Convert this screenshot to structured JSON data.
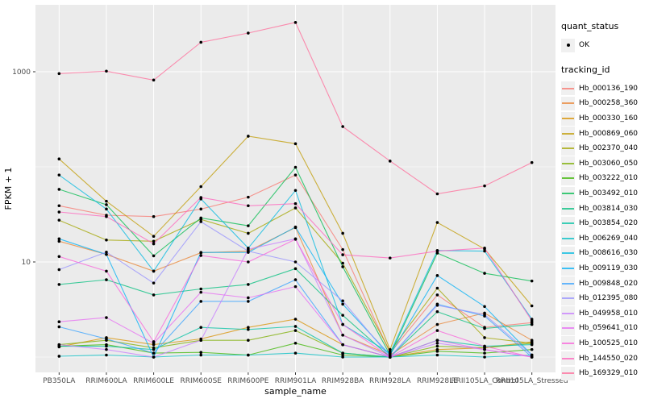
{
  "legend": {
    "quant_status_title": "quant_status",
    "ok_label": "OK",
    "tracking_title": "tracking_id"
  },
  "chart_data": {
    "type": "line",
    "title": "",
    "xlabel": "sample_name",
    "ylabel": "FPKM + 1",
    "y_scale": "log10",
    "ylim": [
      0.68,
      4800
    ],
    "grid": true,
    "legend_position": "right",
    "panel_bg": "#EBEBEB",
    "grid_color": "#FFFFFF",
    "point_color": "#000000",
    "tick_label_color": "#4D4D4D",
    "y_major_ticks": {
      "values": [
        1000,
        10
      ],
      "labels": [
        "1000",
        "10"
      ]
    },
    "y_minor_ticks": {
      "values": [
        100,
        1
      ]
    },
    "categories": [
      "PB350LA",
      "RRIM600LA",
      "RRIM600LE",
      "RRIM600SE",
      "RRIM600PE",
      "RRIM901LA",
      "RRIM928BA",
      "RRIM928LA",
      "RRIM928LE",
      "RRII105LA_Control",
      "RRII105LA_Stressed"
    ],
    "series": [
      {
        "name": "Hb_000136_190",
        "color": "#F8766D",
        "values": [
          39,
          31,
          30,
          36,
          48,
          82,
          13.5,
          1.1,
          4.5,
          2.05,
          2.3
        ]
      },
      {
        "name": "Hb_000258_360",
        "color": "#EA8331",
        "values": [
          16.5,
          12,
          8,
          12.5,
          13,
          23,
          1.7,
          1.05,
          2.2,
          2.9,
          1.5
        ]
      },
      {
        "name": "Hb_000330_160",
        "color": "#D89000",
        "values": [
          1.28,
          1.6,
          1.35,
          1.55,
          2.05,
          2.5,
          1.35,
          1.0,
          1.2,
          1.25,
          1.45
        ]
      },
      {
        "name": "Hb_000869_060",
        "color": "#C09B00",
        "values": [
          121,
          43.5,
          18.6,
          62,
          210,
          175,
          20,
          1.2,
          26,
          13.7,
          3.45
        ]
      },
      {
        "name": "Hb_002370_040",
        "color": "#A3A500",
        "values": [
          27.5,
          17,
          16.5,
          28,
          20,
          37,
          9.7,
          1.15,
          5.3,
          1.6,
          1.4
        ]
      },
      {
        "name": "Hb_003060_050",
        "color": "#7CAE00",
        "values": [
          1.35,
          1.5,
          1.25,
          1.5,
          1.5,
          1.9,
          1.1,
          1.0,
          1.3,
          1.25,
          1.4
        ]
      },
      {
        "name": "Hb_003222_010",
        "color": "#39B600",
        "values": [
          1.3,
          1.35,
          1.1,
          1.12,
          1.05,
          1.4,
          1.05,
          1.0,
          1.15,
          1.1,
          1.2
        ]
      },
      {
        "name": "Hb_003492_010",
        "color": "#00BB4E",
        "values": [
          58,
          40,
          11.6,
          29,
          24,
          99,
          8.9,
          1.05,
          12.4,
          7.6,
          6.3
        ]
      },
      {
        "name": "Hb_003814_030",
        "color": "#00BF7D",
        "values": [
          5.8,
          6.5,
          4.5,
          5.2,
          5.8,
          8.5,
          2.75,
          1.0,
          3.0,
          2.0,
          2.2
        ]
      },
      {
        "name": "Hb_003854_020",
        "color": "#00C1A3",
        "values": [
          1.3,
          1.3,
          1.2,
          2.05,
          1.95,
          2.1,
          1.1,
          1.0,
          1.5,
          1.3,
          1.35
        ]
      },
      {
        "name": "Hb_006269_040",
        "color": "#00BFC4",
        "values": [
          1.02,
          1.05,
          1.0,
          1.05,
          1.05,
          1.1,
          1.0,
          1.0,
          1.05,
          1.0,
          1.05
        ]
      },
      {
        "name": "Hb_008616_030",
        "color": "#00BAE0",
        "values": [
          82,
          36,
          8,
          46,
          14,
          56.5,
          2.2,
          1.1,
          13.2,
          13,
          2.5
        ]
      },
      {
        "name": "Hb_009119_030",
        "color": "#00B0F6",
        "values": [
          17.5,
          12,
          1.0,
          12.6,
          12.6,
          23.3,
          3.6,
          1.05,
          7.2,
          3.4,
          1.05
        ]
      },
      {
        "name": "Hb_009848_020",
        "color": "#35A2FF",
        "values": [
          2.08,
          1.55,
          1.1,
          3.85,
          3.85,
          6.5,
          1.35,
          1.0,
          3.6,
          2.7,
          1.0
        ]
      },
      {
        "name": "Hb_012395_080",
        "color": "#9590FF",
        "values": [
          8.3,
          12.7,
          6,
          26.5,
          13,
          10,
          3.9,
          1.0,
          3.5,
          2.8,
          1.05
        ]
      },
      {
        "name": "Hb_049958_010",
        "color": "#C77CFF",
        "values": [
          1.35,
          1.2,
          1.0,
          1.5,
          13.6,
          17.5,
          1.7,
          1.0,
          1.4,
          1.2,
          1.0
        ]
      },
      {
        "name": "Hb_059641_010",
        "color": "#E76BF3",
        "values": [
          2.35,
          2.6,
          1.4,
          4.8,
          4.2,
          5.5,
          1.35,
          1.0,
          1.5,
          1.2,
          1.0
        ]
      },
      {
        "name": "Hb_100525_010",
        "color": "#FA62DB",
        "values": [
          11.4,
          8,
          1.45,
          11.7,
          10,
          17.3,
          2.2,
          1.0,
          1.9,
          1.3,
          1.0
        ]
      },
      {
        "name": "Hb_144550_020",
        "color": "#FF62BC",
        "values": [
          33.5,
          30,
          15.5,
          47.6,
          39,
          41,
          11.9,
          11,
          13,
          14,
          2.4
        ]
      },
      {
        "name": "Hb_169329_010",
        "color": "#FF6A98",
        "values": [
          956,
          1014,
          817,
          2040,
          2550,
          3300,
          265,
          115,
          52,
          63,
          111
        ]
      }
    ]
  }
}
